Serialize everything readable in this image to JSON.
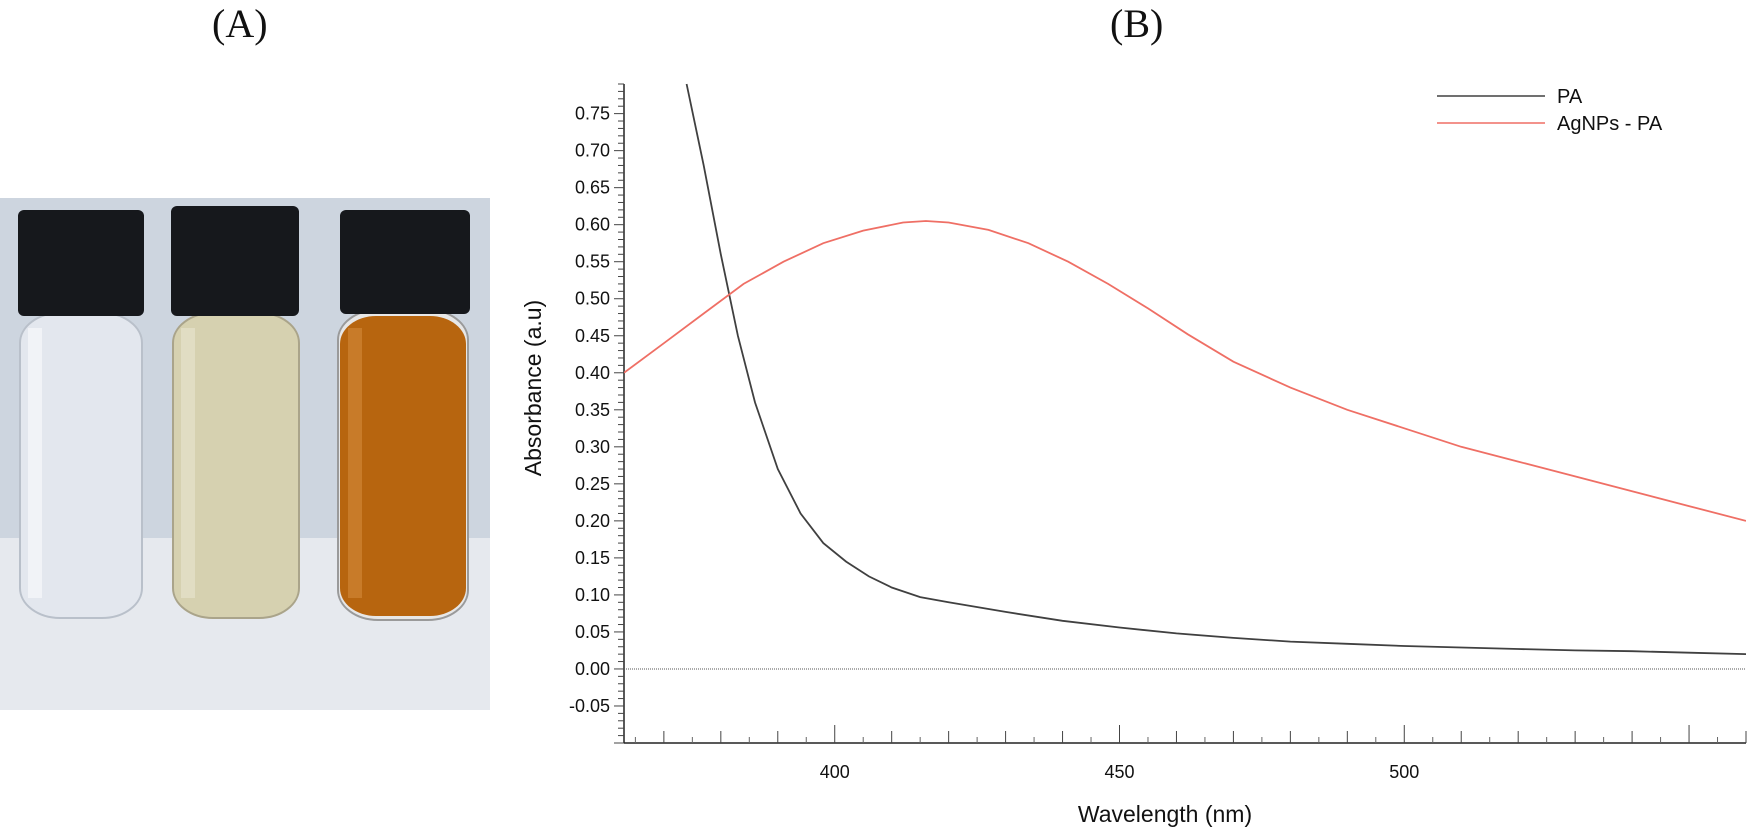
{
  "panels": {
    "a_label": "(A)",
    "b_label": "(B)"
  },
  "photo": {
    "description_icon": "vials-photo",
    "vials": [
      {
        "liquid": "#dfe3ea",
        "cap": "#15171a"
      },
      {
        "liquid": "#d4cfae",
        "cap": "#15171a"
      },
      {
        "liquid": "#b86512",
        "cap": "#15171a"
      }
    ],
    "background": "#c9d2de"
  },
  "chart_data": {
    "type": "line",
    "xlabel": "Wavelength (nm)",
    "ylabel": "Absorbance (a.u)",
    "xlim": [
      363,
      560
    ],
    "ylim": [
      -0.1,
      0.79
    ],
    "x_ticks": [
      400,
      450,
      500
    ],
    "y_ticks": [
      -0.05,
      0.0,
      0.05,
      0.1,
      0.15,
      0.2,
      0.25,
      0.3,
      0.35,
      0.4,
      0.45,
      0.5,
      0.55,
      0.6,
      0.65,
      0.7,
      0.75
    ],
    "y_tick_labels": [
      "-0.05",
      "0.00",
      "0.05",
      "0.10",
      "0.15",
      "0.20",
      "0.25",
      "0.30",
      "0.35",
      "0.40",
      "0.45",
      "0.50",
      "0.55",
      "0.60",
      "0.65",
      "0.70",
      "0.75"
    ],
    "legend_position": "top-right",
    "series": [
      {
        "name": "PA",
        "color": "#404040",
        "x": [
          374,
          377,
          380,
          383,
          386,
          390,
          394,
          398,
          402,
          406,
          410,
          415,
          420,
          430,
          440,
          450,
          460,
          470,
          480,
          490,
          500,
          510,
          520,
          530,
          540,
          550,
          560
        ],
        "y": [
          0.79,
          0.68,
          0.56,
          0.45,
          0.36,
          0.27,
          0.21,
          0.17,
          0.145,
          0.125,
          0.11,
          0.097,
          0.09,
          0.077,
          0.065,
          0.056,
          0.048,
          0.042,
          0.037,
          0.034,
          0.031,
          0.029,
          0.027,
          0.025,
          0.024,
          0.022,
          0.02
        ]
      },
      {
        "name": "AgNPs - PA",
        "color": "#ef6f65",
        "x": [
          363,
          370,
          377,
          384,
          391,
          398,
          405,
          412,
          416,
          420,
          427,
          434,
          441,
          448,
          455,
          462,
          470,
          480,
          490,
          500,
          510,
          520,
          530,
          540,
          550,
          560
        ],
        "y": [
          0.4,
          0.44,
          0.48,
          0.52,
          0.55,
          0.575,
          0.592,
          0.603,
          0.605,
          0.603,
          0.593,
          0.575,
          0.55,
          0.52,
          0.487,
          0.452,
          0.415,
          0.38,
          0.35,
          0.325,
          0.3,
          0.28,
          0.26,
          0.24,
          0.22,
          0.2
        ]
      }
    ],
    "baseline_y": 0.0
  }
}
